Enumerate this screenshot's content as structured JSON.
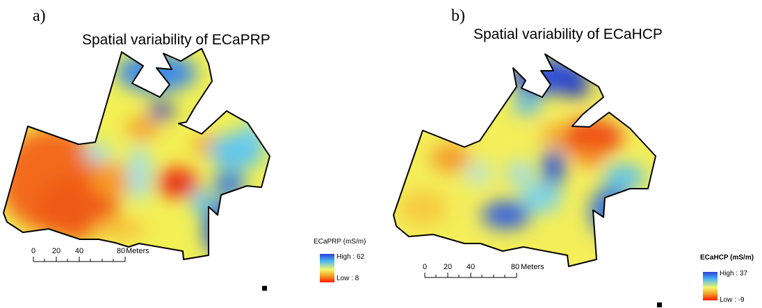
{
  "panel_a": {
    "label": "a)",
    "title": "Spatial variability of ECaPRP",
    "scale": {
      "ticks": [
        "0",
        "20",
        "40",
        "80"
      ],
      "unit": "Meters"
    },
    "legend": {
      "title": "ECaPRP (mS/m)",
      "high": "High : 62",
      "low": "Low : 8"
    }
  },
  "panel_b": {
    "label": "b)",
    "title": "Spatial variability of ECaHCP",
    "scale": {
      "ticks": [
        "0",
        "20",
        "40",
        "80"
      ],
      "unit": "Meters"
    },
    "legend": {
      "title": "ECaHCP (mS/m)",
      "high": "High : 37",
      "low": "Low : -9"
    }
  },
  "colors": {
    "high": "#2d3fd8",
    "mid_blue": "#49b6f2",
    "mid": "#f3f76a",
    "orange": "#f59a23",
    "low": "#ff1a00"
  }
}
